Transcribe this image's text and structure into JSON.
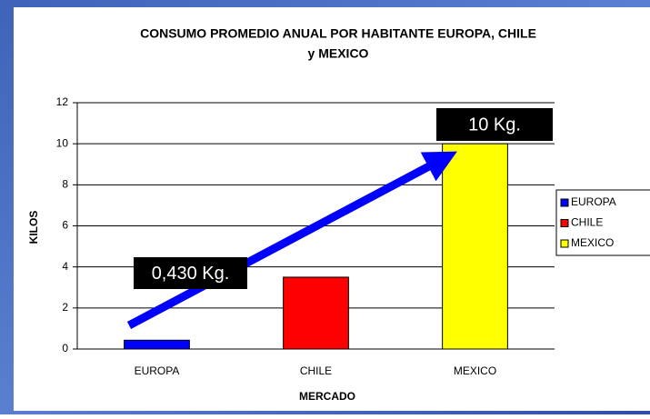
{
  "chart_data": {
    "type": "bar",
    "title": [
      "CONSUMO PROMEDIO ANUAL POR HABITANTE EUROPA, CHILE",
      "y MEXICO"
    ],
    "xlabel": "MERCADO",
    "ylabel": "KILOS",
    "categories": [
      "EUROPA",
      "CHILE",
      "MEXICO"
    ],
    "values": [
      0.43,
      3.5,
      10
    ],
    "colors": [
      "#0000ff",
      "#ff0000",
      "#ffff00"
    ],
    "ylim": [
      0,
      12
    ],
    "yticks": [
      0,
      2,
      4,
      6,
      8,
      10,
      12
    ],
    "grid": true,
    "legend": "right",
    "annotations": [
      "0,430 Kg.",
      "10 Kg."
    ]
  }
}
